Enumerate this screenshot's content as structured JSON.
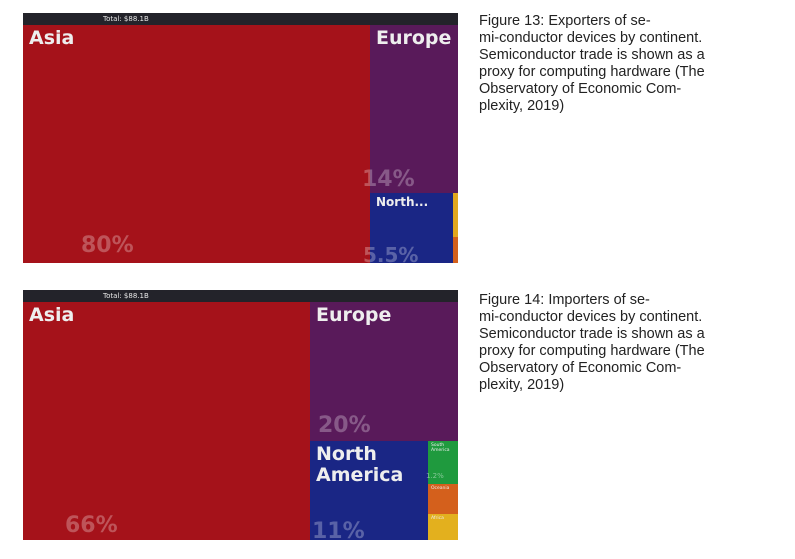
{
  "figures": [
    {
      "total_label": "Total: $88.1B",
      "caption_lines": [
        "Figure 13: Exporters of se-",
        "mi-conductor devices by continent.",
        "Semiconductor trade is shown as a",
        "proxy for computing hardware (The",
        "Observatory of Economic Com-",
        "plexity, 2019)"
      ]
    },
    {
      "total_label": "Total: $88.1B",
      "caption_lines": [
        "Figure 14: Importers of se-",
        "mi-conductor devices by continent.",
        "Semiconductor trade is shown as a",
        "proxy for computing hardware (The",
        "Observatory of Economic Com-",
        "plexity, 2019)"
      ]
    }
  ],
  "chart_data": [
    {
      "type": "treemap",
      "total": "Total: $88.1B",
      "items": [
        {
          "name": "Asia",
          "share": 80,
          "value_label": "80%",
          "color": "#a5121a"
        },
        {
          "name": "Europe",
          "share": 14,
          "value_label": "14%",
          "color": "#591a5a"
        },
        {
          "name": "North...",
          "share": 5.5,
          "value_label": "5.5%",
          "color": "#1a2685"
        },
        {
          "name": "",
          "share": 0.3,
          "value_label": "",
          "color": "#e3a81e"
        },
        {
          "name": "",
          "share": 0.2,
          "value_label": "",
          "color": "#d4601c"
        }
      ]
    },
    {
      "type": "treemap",
      "total": "Total: $88.1B",
      "items": [
        {
          "name": "Asia",
          "share": 66,
          "value_label": "66%",
          "color": "#a5121a"
        },
        {
          "name": "Europe",
          "share": 20,
          "value_label": "20%",
          "color": "#591a5a"
        },
        {
          "name": "North America",
          "share": 11,
          "value_label": "11%",
          "color": "#1a2685"
        },
        {
          "name": "South America",
          "share": 1.2,
          "value_label": "1.2%",
          "color": "#1f9a3e"
        },
        {
          "name": "Oceania",
          "share": 0.9,
          "value_label": "",
          "color": "#d4601c"
        },
        {
          "name": "Africa",
          "share": 0.9,
          "value_label": "",
          "color": "#e3b01e"
        }
      ]
    }
  ]
}
